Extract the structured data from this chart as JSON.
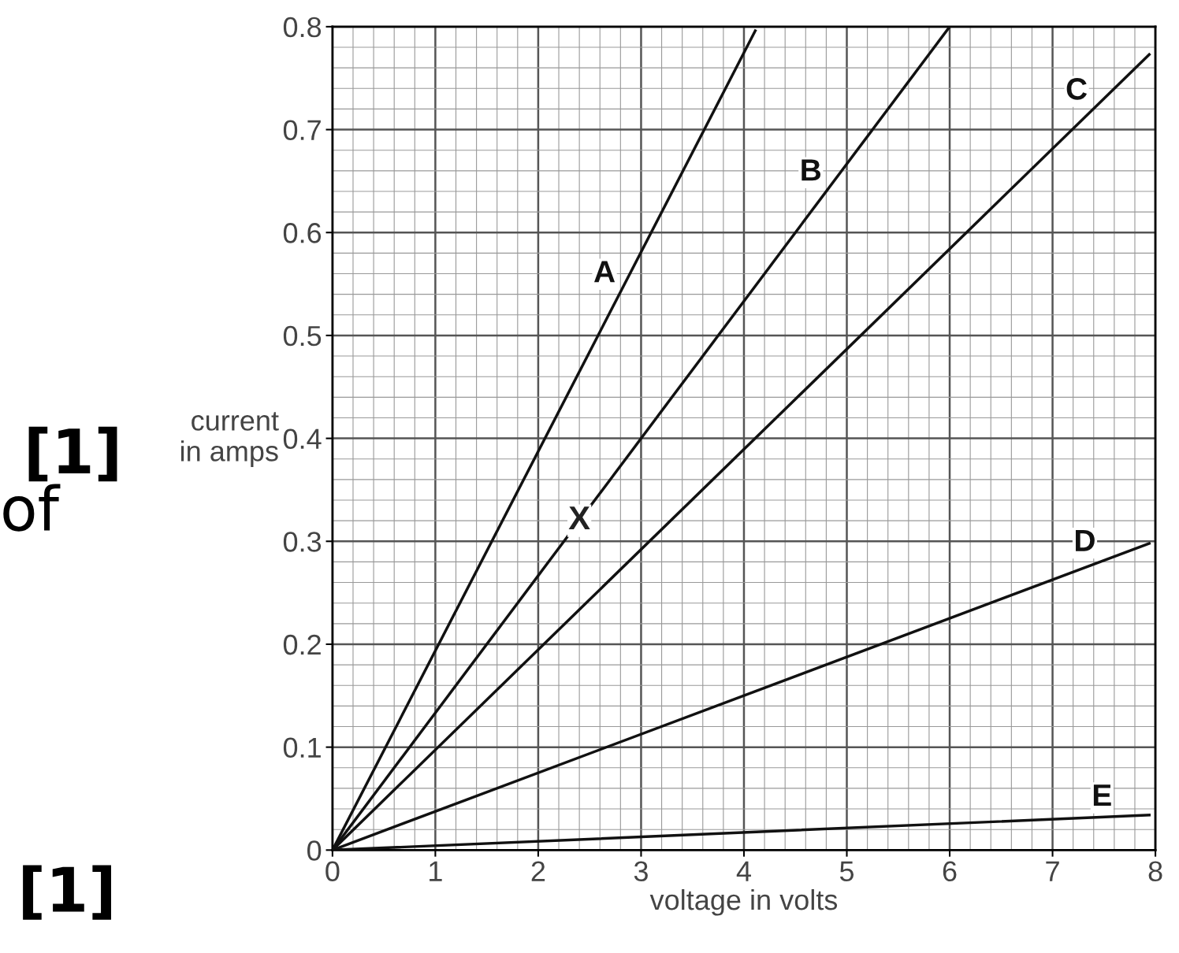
{
  "chart_data": {
    "type": "line",
    "xlabel": "voltage in volts",
    "ylabel": "current\nin amps",
    "xlim": [
      0,
      8
    ],
    "ylim": [
      0,
      0.8
    ],
    "xticks": [
      0,
      1,
      2,
      3,
      4,
      5,
      6,
      7,
      8
    ],
    "yticks": [
      0,
      0.1,
      0.2,
      0.3,
      0.4,
      0.5,
      0.6,
      0.7,
      0.8
    ],
    "grid": true,
    "marker": "none",
    "line_style": "solid",
    "legend": false,
    "series": [
      {
        "name": "A",
        "color": "#111111",
        "x": [
          0,
          4.11
        ],
        "values": [
          0,
          0.796
        ]
      },
      {
        "name": "B",
        "color": "#111111",
        "x": [
          0,
          6
        ],
        "values": [
          0,
          0.8
        ]
      },
      {
        "name": "C",
        "color": "#111111",
        "x": [
          0,
          7.94
        ],
        "values": [
          0,
          0.773
        ]
      },
      {
        "name": "D",
        "color": "#111111",
        "x": [
          0,
          7.94
        ],
        "values": [
          0,
          0.298
        ]
      },
      {
        "name": "E",
        "color": "#111111",
        "x": [
          0,
          7.94
        ],
        "values": [
          0,
          0.034
        ]
      }
    ],
    "annotations": [
      {
        "text": "X",
        "x": 2.4,
        "y": 0.32
      },
      "[1]",
      "of",
      "[1]"
    ]
  }
}
